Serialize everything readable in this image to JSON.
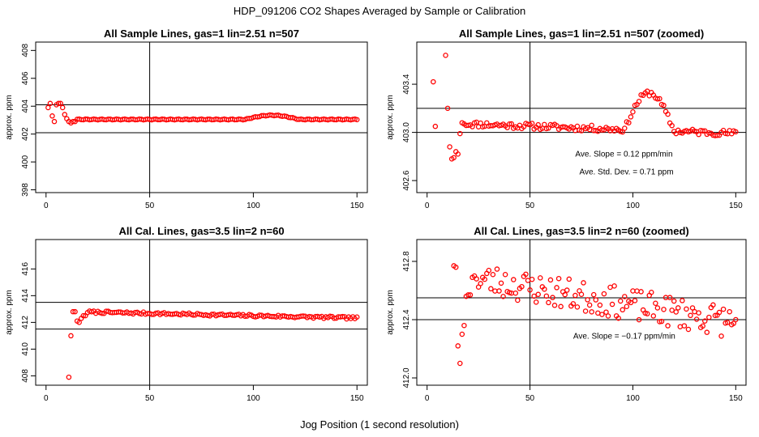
{
  "page_title": "HDP_091206  CO2 Shapes Averaged by Sample or Calibration",
  "x_axis_label": "Jog Position (1 second resolution)",
  "colors": {
    "points": "#ff0000",
    "axes": "#000000",
    "background": "#ffffff"
  },
  "chart_data": [
    {
      "type": "scatter",
      "title": "All Sample Lines, gas=1 lin=2.51 n=507",
      "ylabel": "approx. ppm",
      "xlim": [
        -5,
        155
      ],
      "ylim": [
        397.8,
        408.6
      ],
      "x_ticks": [
        0,
        50,
        100,
        150
      ],
      "y_ticks": [
        398,
        400,
        402,
        404,
        406,
        408
      ],
      "y_tick_labels": [
        "398",
        "400",
        "402",
        "404",
        "406",
        "408"
      ],
      "hlines": [
        404.1,
        402.1
      ],
      "vline": 50,
      "annotations": [],
      "series": [
        {
          "name": "sample",
          "model": "sample_full"
        }
      ]
    },
    {
      "type": "scatter",
      "title": "All Sample Lines, gas=1 lin=2.51 n=507 (zoomed)",
      "ylabel": "approx. ppm",
      "xlim": [
        -5,
        155
      ],
      "ylim": [
        402.5,
        403.75
      ],
      "x_ticks": [
        0,
        50,
        100,
        150
      ],
      "y_ticks": [
        402.6,
        403.0,
        403.4
      ],
      "y_tick_labels": [
        "402.6",
        "403.0",
        "403.4"
      ],
      "hlines": [
        403.2,
        403.0
      ],
      "vline": 50,
      "annotations": [
        {
          "text": "Ave. Slope =  0.12  ppm/min",
          "x": 72,
          "y": 402.8
        },
        {
          "text": "Ave. Std. Dev. =  0.71  ppm",
          "x": 74,
          "y": 402.65
        }
      ],
      "series": [
        {
          "name": "sample",
          "model": "sample_zoom"
        }
      ]
    },
    {
      "type": "scatter",
      "title": "All Cal. Lines, gas=3.5 lin=2 n=60",
      "ylabel": "approx. ppm",
      "xlim": [
        -5,
        155
      ],
      "ylim": [
        407.3,
        418.2
      ],
      "x_ticks": [
        0,
        50,
        100,
        150
      ],
      "y_ticks": [
        408,
        410,
        412,
        414,
        416
      ],
      "y_tick_labels": [
        "408",
        "410",
        "412",
        "414",
        "416"
      ],
      "hlines": [
        413.5,
        411.5
      ],
      "vline": 50,
      "annotations": [],
      "series": [
        {
          "name": "calibration",
          "model": "cal_full"
        }
      ]
    },
    {
      "type": "scatter",
      "title": "All Cal. Lines, gas=3.5 lin=2 n=60 (zoomed)",
      "ylabel": "approx. ppm",
      "xlim": [
        -5,
        155
      ],
      "ylim": [
        411.95,
        412.95
      ],
      "x_ticks": [
        0,
        50,
        100,
        150
      ],
      "y_ticks": [
        412.0,
        412.4,
        412.8
      ],
      "y_tick_labels": [
        "412.0",
        "412.4",
        "412.8"
      ],
      "hlines": [
        412.55,
        412.4
      ],
      "vline": 50,
      "annotations": [
        {
          "text": "Ave. Slope =  −0.17  ppm/min",
          "x": 71,
          "y": 412.27
        }
      ],
      "series": [
        {
          "name": "calibration",
          "model": "cal_zoom"
        }
      ]
    }
  ]
}
